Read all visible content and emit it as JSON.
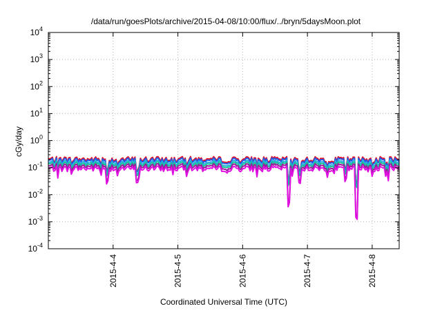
{
  "chart_data": {
    "type": "line",
    "title": "/data/run/goesPlots/archive/2015-04-08/10:00/flux/../bryn/5daysMoon.plot",
    "xlabel": "Coordinated Universal Time (UTC)",
    "ylabel": "cGy/day",
    "y_scale": "log",
    "ylim": [
      0.0001,
      10000
    ],
    "xlim": [
      "2015-04-03 00:00",
      "2015-04-08 10:00"
    ],
    "y_ticks": [
      {
        "value": 0.0001,
        "base": "10",
        "exp": "-4"
      },
      {
        "value": 0.001,
        "base": "10",
        "exp": "-3"
      },
      {
        "value": 0.01,
        "base": "10",
        "exp": "-2"
      },
      {
        "value": 0.1,
        "base": "10",
        "exp": "-1"
      },
      {
        "value": 1,
        "base": "10",
        "exp": "0"
      },
      {
        "value": 10,
        "base": "10",
        "exp": "1"
      },
      {
        "value": 100,
        "base": "10",
        "exp": "2"
      },
      {
        "value": 1000,
        "base": "10",
        "exp": "3"
      },
      {
        "value": 10000,
        "base": "10",
        "exp": "4"
      }
    ],
    "x_ticks": [
      {
        "date": "2015-04-04 00:00",
        "label": "2015-4-4"
      },
      {
        "date": "2015-04-05 00:00",
        "label": "2015-4-5"
      },
      {
        "date": "2015-04-06 00:00",
        "label": "2015-4-6"
      },
      {
        "date": "2015-04-07 00:00",
        "label": "2015-4-7"
      },
      {
        "date": "2015-04-08 00:00",
        "label": "2015-4-8"
      }
    ],
    "grid": true,
    "legend": "none",
    "series": [
      {
        "color": "#e8102a",
        "baseline": 0.2
      },
      {
        "color": "#1f5ae8",
        "baseline": 0.18
      },
      {
        "color": "#2ab0e0",
        "baseline": 0.15
      },
      {
        "color": "#18c09a",
        "baseline": 0.13
      },
      {
        "color": "#9a1a9a",
        "baseline": 0.11
      },
      {
        "color": "#e010e0",
        "baseline": 0.09
      }
    ],
    "notable_dips": [
      {
        "date": "2015-04-03 22:00",
        "value": 0.03
      },
      {
        "date": "2015-04-04 09:00",
        "value": 0.035
      },
      {
        "date": "2015-04-06 17:00",
        "value": 0.0045
      },
      {
        "date": "2015-04-06 21:00",
        "value": 0.03
      },
      {
        "date": "2015-04-07 14:00",
        "value": 0.035
      },
      {
        "date": "2015-04-07 18:00",
        "value": 0.0016
      },
      {
        "date": "2015-04-08 06:00",
        "value": 0.04
      }
    ]
  }
}
